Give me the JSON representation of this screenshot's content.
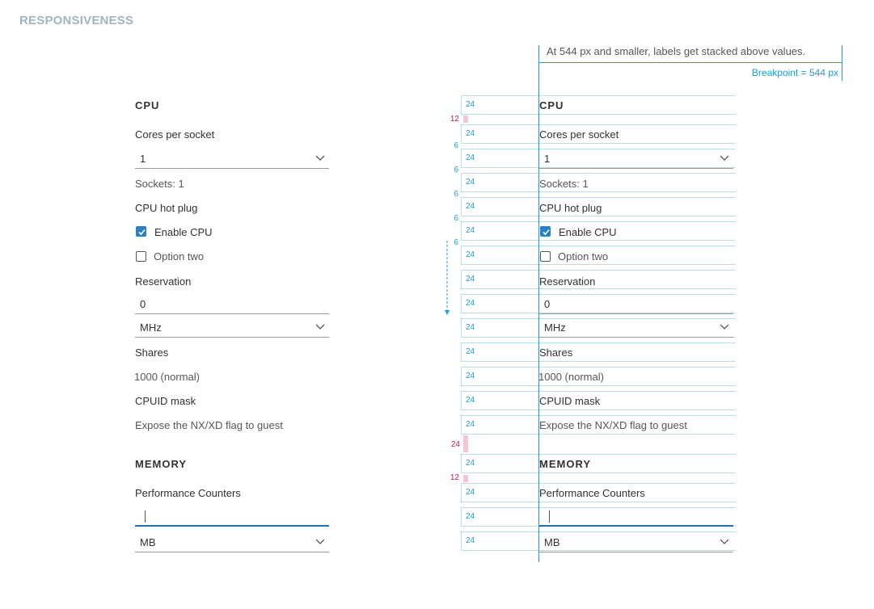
{
  "page_heading": "RESPONSIVENESS",
  "note_text": "At 544 px and smaller, labels get stacked above values.",
  "breakpoint_label": "Breakpoint = 544 px",
  "form": {
    "cpu_title": "CPU",
    "cores_label": "Cores per socket",
    "cores_value": "1",
    "sockets_text": "Sockets: 1",
    "hotplug_label": "CPU hot plug",
    "enable_cpu_label": "Enable CPU",
    "enable_cpu_checked": true,
    "option_two_label": "Option two",
    "option_two_checked": false,
    "reservation_label": "Reservation",
    "reservation_value": "0",
    "reservation_unit": "MHz",
    "shares_label": "Shares",
    "shares_value": "1000 (normal)",
    "cpuid_label": "CPUID mask",
    "cpuid_value": "Expose the NX/XD flag to guest",
    "memory_title": "MEMORY",
    "perf_label": "Performance Counters",
    "perf_value": "",
    "memory_unit": "MB"
  },
  "annotations": {
    "row_height": "24",
    "gap_12": "12",
    "gap_6": "6",
    "gap_24": "24"
  },
  "colors": {
    "accent_blue": "#1a9fd6",
    "spacing_pink": "#f6c4d8",
    "checkbox_blue": "#2b7fc3",
    "heading_gray": "#9eb4c2"
  }
}
